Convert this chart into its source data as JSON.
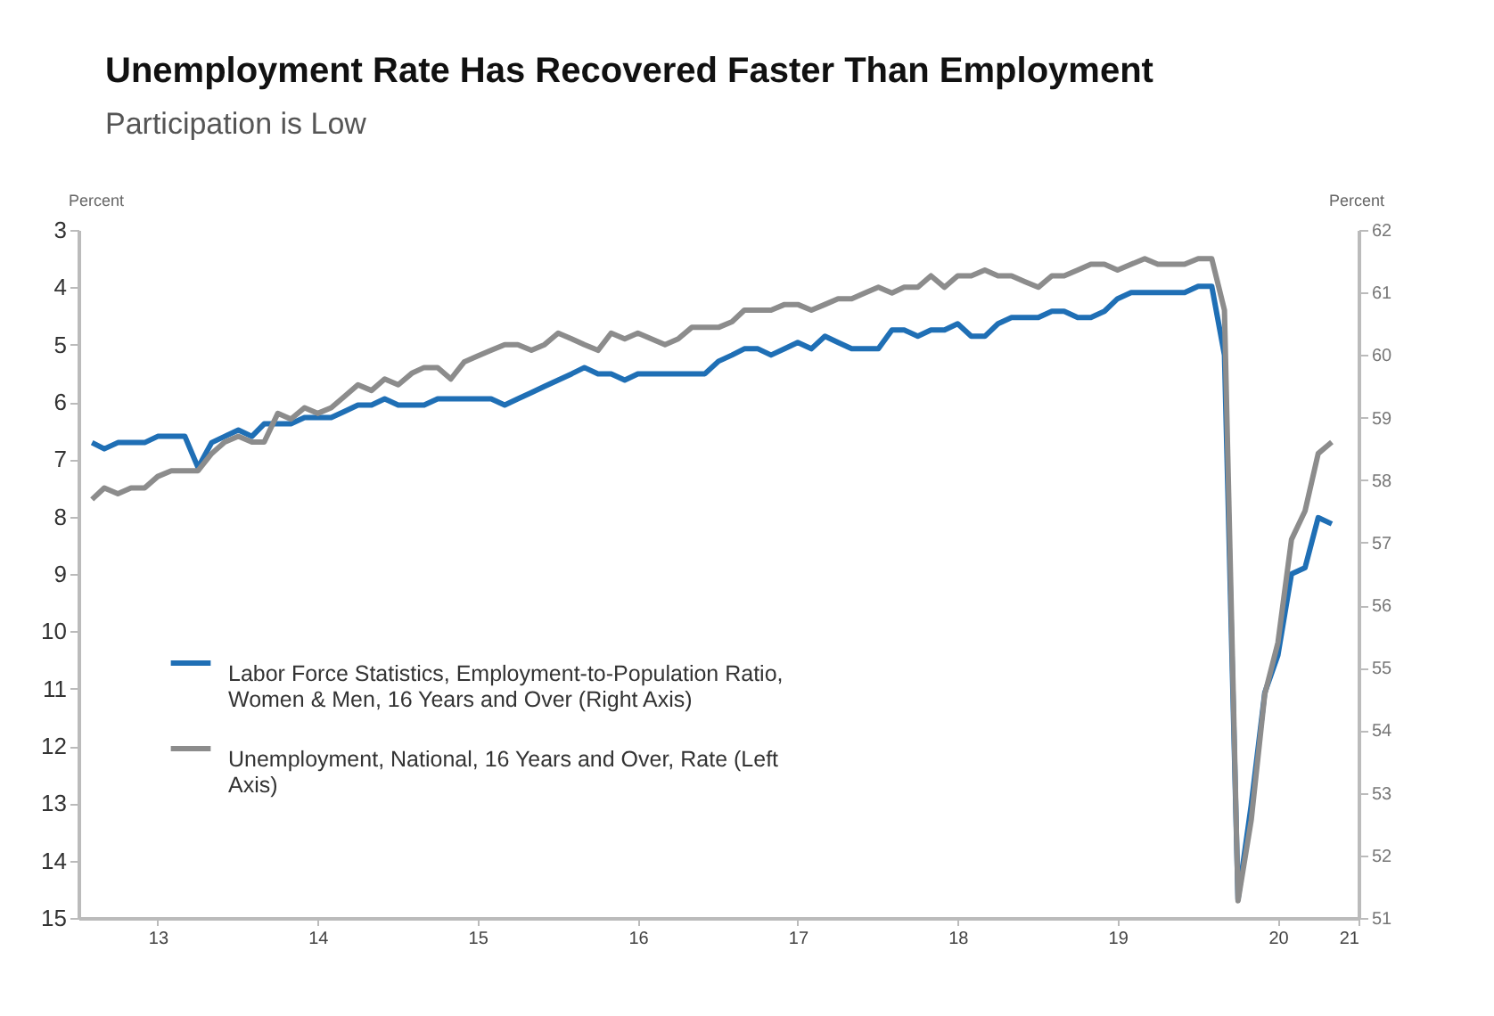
{
  "chart_data": {
    "type": "line",
    "title": "Unemployment Rate Has Recovered Faster Than Employment",
    "subtitle": "Participation is Low",
    "ylabel": "Percent",
    "y2label": "Percent",
    "x": [
      "2013-02",
      "2013-03",
      "2013-04",
      "2013-05",
      "2013-06",
      "2013-07",
      "2013-08",
      "2013-09",
      "2013-10",
      "2013-11",
      "2013-12",
      "2014-01",
      "2014-02",
      "2014-03",
      "2014-04",
      "2014-05",
      "2014-06",
      "2014-07",
      "2014-08",
      "2014-09",
      "2014-10",
      "2014-11",
      "2014-12",
      "2015-01",
      "2015-02",
      "2015-03",
      "2015-04",
      "2015-05",
      "2015-06",
      "2015-07",
      "2015-08",
      "2015-09",
      "2015-10",
      "2015-11",
      "2015-12",
      "2016-01",
      "2016-02",
      "2016-03",
      "2016-04",
      "2016-05",
      "2016-06",
      "2016-07",
      "2016-08",
      "2016-09",
      "2016-10",
      "2016-11",
      "2016-12",
      "2017-01",
      "2017-02",
      "2017-03",
      "2017-04",
      "2017-05",
      "2017-06",
      "2017-07",
      "2017-08",
      "2017-09",
      "2017-10",
      "2017-11",
      "2017-12",
      "2018-01",
      "2018-02",
      "2018-03",
      "2018-04",
      "2018-05",
      "2018-06",
      "2018-07",
      "2018-08",
      "2018-09",
      "2018-10",
      "2018-11",
      "2018-12",
      "2019-01",
      "2019-02",
      "2019-03",
      "2019-04",
      "2019-05",
      "2019-06",
      "2019-07",
      "2019-08",
      "2019-09",
      "2019-10",
      "2019-11",
      "2019-12",
      "2020-01",
      "2020-02",
      "2020-03",
      "2020-04",
      "2020-05",
      "2020-06",
      "2020-07",
      "2020-08",
      "2020-09",
      "2020-10",
      "2020-11"
    ],
    "series": [
      {
        "name": "Labor Force Statistics, Employment-to-Population Ratio, Women & Men, 16 Years and Over (Right Axis)",
        "color": "#1f6fb5",
        "axis": "y2",
        "values": [
          58.6,
          58.5,
          58.6,
          58.6,
          58.6,
          58.7,
          58.7,
          58.7,
          58.2,
          58.6,
          58.7,
          58.8,
          58.7,
          58.9,
          58.9,
          58.9,
          59.0,
          59.0,
          59.0,
          59.1,
          59.2,
          59.2,
          59.3,
          59.2,
          59.2,
          59.2,
          59.3,
          59.3,
          59.3,
          59.3,
          59.3,
          59.2,
          59.3,
          59.4,
          59.5,
          59.6,
          59.7,
          59.8,
          59.7,
          59.7,
          59.6,
          59.7,
          59.7,
          59.7,
          59.7,
          59.7,
          59.7,
          59.9,
          60.0,
          60.1,
          60.1,
          60.0,
          60.1,
          60.2,
          60.1,
          60.3,
          60.2,
          60.1,
          60.1,
          60.1,
          60.4,
          60.4,
          60.3,
          60.4,
          60.4,
          60.5,
          60.3,
          60.3,
          60.5,
          60.6,
          60.6,
          60.6,
          60.7,
          60.7,
          60.6,
          60.6,
          60.7,
          60.9,
          61.0,
          61.0,
          61.0,
          61.0,
          61.0,
          61.1,
          61.1,
          60.0,
          51.3,
          52.8,
          54.6,
          55.2,
          56.5,
          56.6,
          57.4,
          57.3
        ]
      },
      {
        "name": "Unemployment, National, 16 Years and Over, Rate (Left Axis)",
        "color": "#8c8c8c",
        "values": [
          7.7,
          7.5,
          7.6,
          7.5,
          7.5,
          7.3,
          7.2,
          7.2,
          7.2,
          6.9,
          6.7,
          6.6,
          6.7,
          6.7,
          6.2,
          6.3,
          6.1,
          6.2,
          6.1,
          5.9,
          5.7,
          5.8,
          5.6,
          5.7,
          5.5,
          5.4,
          5.4,
          5.6,
          5.3,
          5.2,
          5.1,
          5.0,
          5.0,
          5.1,
          5.0,
          4.8,
          4.9,
          5.0,
          5.1,
          4.8,
          4.9,
          4.8,
          4.9,
          5.0,
          4.9,
          4.7,
          4.7,
          4.7,
          4.6,
          4.4,
          4.4,
          4.4,
          4.3,
          4.3,
          4.4,
          4.3,
          4.2,
          4.2,
          4.1,
          4.0,
          4.1,
          4.0,
          4.0,
          3.8,
          4.0,
          3.8,
          3.8,
          3.7,
          3.8,
          3.8,
          3.9,
          4.0,
          3.8,
          3.8,
          3.7,
          3.6,
          3.6,
          3.7,
          3.6,
          3.5,
          3.6,
          3.6,
          3.6,
          3.5,
          3.5,
          4.4,
          14.7,
          13.3,
          11.1,
          10.2,
          8.4,
          7.9,
          6.9,
          6.7
        ]
      }
    ],
    "xlim": [
      "2013-01",
      "2021-01"
    ],
    "xticks": [
      {
        "value": "2013-07",
        "label": "13"
      },
      {
        "value": "2014-07",
        "label": "14"
      },
      {
        "value": "2015-07",
        "label": "15"
      },
      {
        "value": "2016-07",
        "label": "16"
      },
      {
        "value": "2017-07",
        "label": "17"
      },
      {
        "value": "2018-07",
        "label": "18"
      },
      {
        "value": "2019-07",
        "label": "19"
      },
      {
        "value": "2020-07",
        "label": "20"
      },
      {
        "value": "2021-01",
        "label": "21"
      }
    ],
    "ylim": [
      15,
      3
    ],
    "yticks": [
      3,
      4,
      5,
      6,
      7,
      8,
      9,
      10,
      11,
      12,
      13,
      14,
      15
    ],
    "y2lim": [
      51,
      62
    ],
    "y2ticks": [
      51,
      52,
      53,
      54,
      55,
      56,
      57,
      58,
      59,
      60,
      61,
      62
    ],
    "legend": "left",
    "grid": false,
    "line_style": "solid",
    "marker": "none"
  }
}
